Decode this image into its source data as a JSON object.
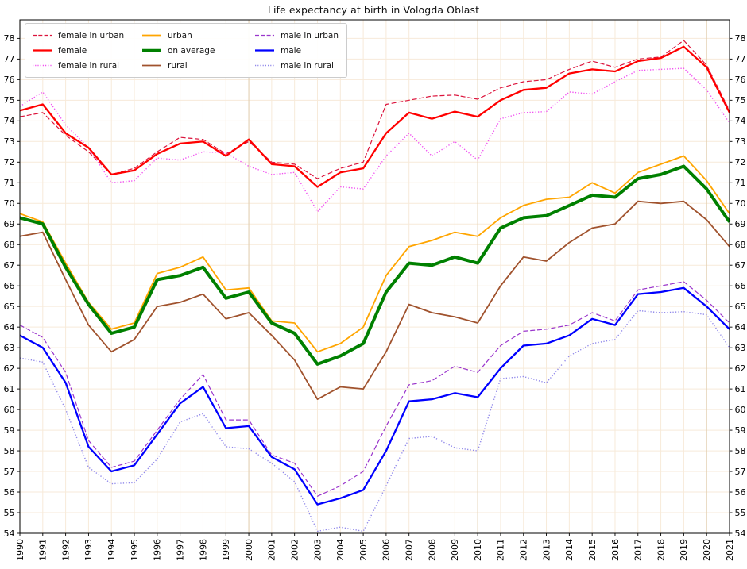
{
  "chart_data": {
    "type": "line",
    "title": "Life expectancy at birth in Vologda Oblast",
    "xlabel": "",
    "ylabel": "",
    "x": [
      1990,
      1991,
      1992,
      1993,
      1994,
      1995,
      1996,
      1997,
      1998,
      1999,
      2000,
      2001,
      2002,
      2003,
      2004,
      2005,
      2006,
      2007,
      2008,
      2009,
      2010,
      2011,
      2012,
      2013,
      2014,
      2015,
      2016,
      2017,
      2018,
      2019,
      2020,
      2021
    ],
    "ylim": [
      54,
      78.9
    ],
    "y_ticks": [
      54,
      55,
      56,
      57,
      58,
      59,
      60,
      61,
      62,
      63,
      64,
      65,
      66,
      67,
      68,
      69,
      70,
      71,
      72,
      73,
      74,
      75,
      76,
      77,
      78
    ],
    "grid": true,
    "grid_color": "#f7ead9",
    "grid_major_color": "#e3d0b2",
    "legend_position": "upper-left",
    "legend_columns": 3,
    "series": [
      {
        "name": "female in urban",
        "color": "#dc143c",
        "line_style": "dashed",
        "line_width": 1.2,
        "values": [
          74.2,
          74.4,
          73.3,
          72.5,
          71.4,
          71.7,
          72.5,
          73.2,
          73.1,
          72.4,
          73.0,
          72.0,
          71.9,
          71.2,
          71.7,
          72.0,
          74.8,
          75.0,
          75.2,
          75.25,
          75.05,
          75.6,
          75.9,
          76.0,
          76.5,
          76.9,
          76.6,
          77.0,
          77.1,
          77.9,
          76.7,
          74.5
        ]
      },
      {
        "name": "female",
        "color": "#ff0000",
        "line_style": "solid",
        "line_width": 2.3,
        "values": [
          74.5,
          74.8,
          73.4,
          72.7,
          71.4,
          71.6,
          72.4,
          72.9,
          73.0,
          72.3,
          73.1,
          71.9,
          71.8,
          70.8,
          71.5,
          71.7,
          73.4,
          74.4,
          74.1,
          74.45,
          74.2,
          75.0,
          75.5,
          75.6,
          76.3,
          76.5,
          76.4,
          76.9,
          77.05,
          77.6,
          76.6,
          74.4
        ]
      },
      {
        "name": "female in rural",
        "color": "#f150f1",
        "line_style": "dotted",
        "line_width": 1.4,
        "values": [
          74.7,
          75.4,
          73.8,
          72.7,
          71.0,
          71.1,
          72.2,
          72.1,
          72.5,
          72.45,
          71.8,
          71.4,
          71.5,
          69.6,
          70.8,
          70.7,
          72.3,
          73.4,
          72.3,
          73.0,
          72.1,
          74.1,
          74.4,
          74.45,
          75.4,
          75.3,
          75.9,
          76.45,
          76.5,
          76.55,
          75.5,
          73.9
        ]
      },
      {
        "name": "urban",
        "color": "#ffa500",
        "line_style": "solid",
        "line_width": 1.8,
        "values": [
          69.5,
          69.1,
          67.1,
          65.2,
          63.9,
          64.2,
          66.6,
          66.9,
          67.4,
          65.8,
          65.9,
          64.3,
          64.2,
          62.8,
          63.2,
          64.0,
          66.5,
          67.9,
          68.2,
          68.6,
          68.4,
          69.3,
          69.9,
          70.2,
          70.3,
          71.0,
          70.5,
          71.5,
          71.9,
          72.3,
          71.1,
          69.5
        ]
      },
      {
        "name": "on average",
        "color": "#008000",
        "line_style": "solid",
        "line_width": 4,
        "values": [
          69.3,
          69.0,
          66.9,
          65.1,
          63.7,
          64.0,
          66.3,
          66.5,
          66.9,
          65.4,
          65.7,
          64.2,
          63.7,
          62.2,
          62.6,
          63.2,
          65.7,
          67.1,
          67.0,
          67.4,
          67.1,
          68.8,
          69.3,
          69.4,
          69.9,
          70.4,
          70.3,
          71.2,
          71.4,
          71.8,
          70.7,
          69.1
        ]
      },
      {
        "name": "rural",
        "color": "#a0522d",
        "line_style": "solid",
        "line_width": 1.8,
        "values": [
          68.4,
          68.6,
          66.3,
          64.1,
          62.8,
          63.4,
          65.0,
          65.2,
          65.6,
          64.4,
          64.7,
          63.6,
          62.4,
          60.5,
          61.1,
          61.0,
          62.8,
          65.1,
          64.7,
          64.5,
          64.2,
          66.0,
          67.4,
          67.2,
          68.1,
          68.8,
          69.0,
          70.1,
          70.0,
          70.1,
          69.2,
          67.9
        ]
      },
      {
        "name": "male in urban",
        "color": "#9a35cc",
        "line_style": "dashed",
        "line_width": 1.2,
        "values": [
          64.1,
          63.5,
          61.8,
          58.5,
          57.2,
          57.5,
          59.0,
          60.5,
          61.7,
          59.5,
          59.5,
          57.8,
          57.4,
          55.8,
          56.3,
          57.0,
          59.2,
          61.2,
          61.4,
          62.1,
          61.8,
          63.1,
          63.8,
          63.9,
          64.1,
          64.7,
          64.3,
          65.8,
          66.0,
          66.2,
          65.3,
          64.2
        ]
      },
      {
        "name": "male",
        "color": "#0000ff",
        "line_style": "solid",
        "line_width": 2.3,
        "values": [
          63.6,
          63.0,
          61.3,
          58.2,
          57.0,
          57.3,
          58.8,
          60.3,
          61.1,
          59.1,
          59.2,
          57.7,
          57.1,
          55.4,
          55.7,
          56.1,
          58.0,
          60.4,
          60.5,
          60.8,
          60.6,
          62.0,
          63.1,
          63.2,
          63.6,
          64.4,
          64.1,
          65.6,
          65.7,
          65.9,
          65.0,
          63.9
        ]
      },
      {
        "name": "male in rural",
        "color": "#9189ea",
        "line_style": "dotted",
        "line_width": 1.4,
        "values": [
          62.5,
          62.3,
          60.0,
          57.2,
          56.4,
          56.45,
          57.6,
          59.4,
          59.8,
          58.2,
          58.1,
          57.4,
          56.5,
          54.1,
          54.3,
          54.1,
          56.3,
          58.6,
          58.7,
          58.15,
          58.0,
          61.5,
          61.6,
          61.3,
          62.6,
          63.2,
          63.4,
          64.8,
          64.7,
          64.75,
          64.6,
          63.0
        ]
      }
    ]
  }
}
